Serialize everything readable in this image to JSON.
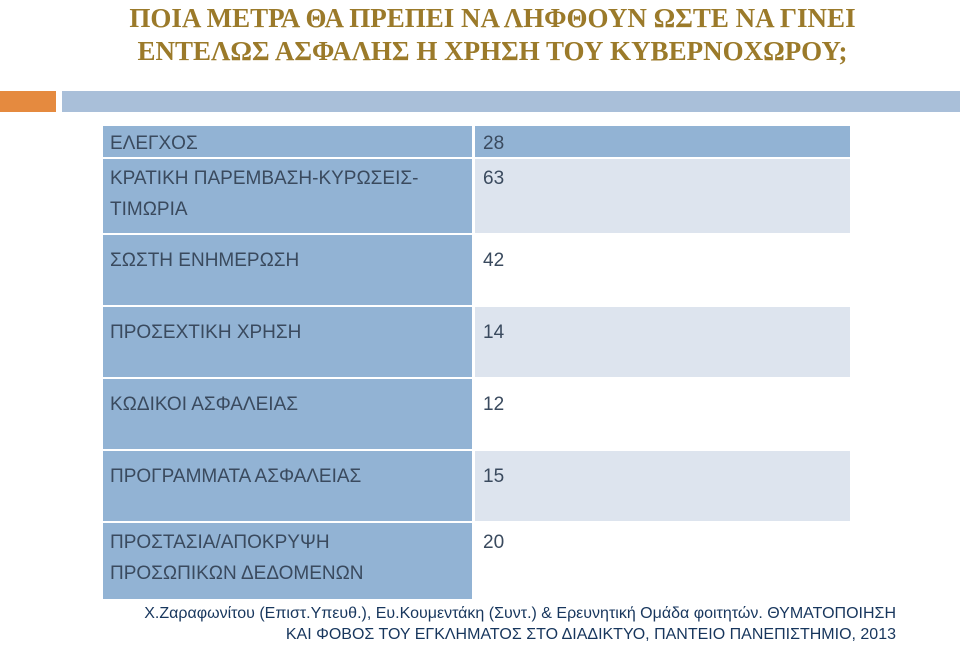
{
  "title": {
    "line1": "ΠΟΙΑ ΜΕΤΡΑ ΘΑ ΠΡΕΠΕΙ ΝΑ ΛΗΦΘΟΥΝ ΩΣΤΕ ΝΑ ΓΙΝΕΙ",
    "line2": "ΕΝΤΕΛΩΣ ΑΣΦΑΛΗΣ Η ΧΡΗΣΗ ΤΟΥ ΚΥΒΕΡΝΟΧΩΡΟΥ;"
  },
  "table": {
    "rows": [
      {
        "label_lines": [
          "ΕΛΕΓΧΟΣ"
        ],
        "value": "28"
      },
      {
        "label_lines": [
          "ΚΡΑΤΙΚΗ ΠΑΡΕΜΒΑΣΗ-ΚΥΡΩΣΕΙΣ-",
          "ΤΙΜΩΡΙΑ"
        ],
        "value": "63"
      },
      {
        "label_lines": [
          "ΣΩΣΤΗ ΕΝΗΜΕΡΩΣΗ"
        ],
        "value": "42"
      },
      {
        "label_lines": [
          "ΠΡΟΣΕΧΤΙΚΗ ΧΡΗΣΗ"
        ],
        "value": "14"
      },
      {
        "label_lines": [
          "ΚΩΔΙΚΟΙ ΑΣΦΑΛΕΙΑΣ"
        ],
        "value": "12"
      },
      {
        "label_lines": [
          "ΠΡΟΓΡΑΜΜΑΤΑ ΑΣΦΑΛΕΙΑΣ"
        ],
        "value": "15"
      },
      {
        "label_lines": [
          "ΠΡΟΣΤΑΣΙΑ/ΑΠΟΚΡΥΨΗ",
          "ΠΡΟΣΩΠΙΚΩΝ ΔΕΔΟΜΕΝΩΝ"
        ],
        "value": "20"
      }
    ]
  },
  "footer": {
    "line1": "Χ.Ζαραφωνίτου (Επιστ.Υπευθ.), Ευ.Κουμεντάκη (Συντ.) & Ερευνητική Ομάδα φοιτητών. ΘΥΜΑΤΟΠΟΙΗΣΗ",
    "line2": "ΚΑΙ ΦΟΒΟΣ ΤΟΥ ΕΓΚΛΗΜΑΤΟΣ ΣΤΟ ΔΙΑΔΙΚΤΥΟ, ΠΑΝΤΕΙΟ ΠΑΝΕΠΙΣΤΗΜΙΟ, 2013"
  }
}
